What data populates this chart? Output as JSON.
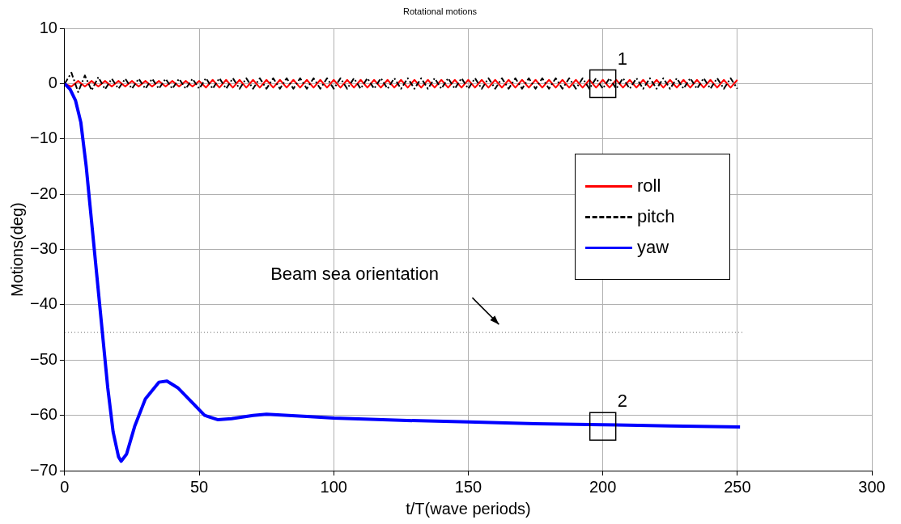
{
  "chart_data": {
    "type": "line",
    "title": "Rotational motions",
    "xlabel": "t/T(wave periods)",
    "ylabel": "Motions(deg)",
    "x": [
      0,
      2.5,
      5,
      7.5,
      10,
      12.5,
      15,
      17.5,
      20,
      22.5,
      25,
      27.5,
      30,
      32.5,
      35,
      37.5,
      40,
      42.5,
      45,
      47.5,
      50,
      52.5,
      55,
      57.5,
      60,
      62.5,
      65,
      67.5,
      70,
      72.5,
      75,
      77.5,
      80,
      82.5,
      85,
      87.5,
      90,
      92.5,
      95,
      97.5,
      100,
      102.5,
      105,
      107.5,
      110,
      112.5,
      115,
      117.5,
      120,
      122.5,
      125,
      127.5,
      130,
      132.5,
      135,
      137.5,
      140,
      142.5,
      145,
      147.5,
      150,
      152.5,
      155,
      157.5,
      160,
      162.5,
      165,
      167.5,
      170,
      172.5,
      175,
      177.5,
      180,
      182.5,
      185,
      187.5,
      190,
      192.5,
      195,
      197.5,
      200,
      202.5,
      205,
      207.5,
      210,
      212.5,
      215,
      217.5,
      220,
      222.5,
      225,
      227.5,
      230,
      232.5,
      235,
      237.5,
      240,
      242.5,
      245,
      247.5,
      250
    ],
    "series": [
      {
        "name": "roll",
        "color": "#ff0000",
        "line_style": "solid",
        "values": [
          0,
          -0.5,
          0.5,
          -0.5,
          0.5,
          -0.5,
          0.5,
          -0.5,
          0.5,
          -0.5,
          0.5,
          -0.5,
          0.5,
          -0.5,
          0.5,
          -0.5,
          0.5,
          -0.5,
          0.5,
          -0.5,
          0.5,
          -0.7,
          0.7,
          -0.7,
          0.7,
          -0.7,
          0.7,
          -0.7,
          0.7,
          -0.7,
          0.7,
          -0.7,
          0.7,
          -0.7,
          0.7,
          -0.7,
          0.7,
          -0.7,
          0.7,
          -0.7,
          0.7,
          -0.7,
          0.7,
          -0.7,
          0.7,
          -0.7,
          0.7,
          -0.7,
          0.7,
          -0.7,
          0.7,
          -0.7,
          0.7,
          -0.7,
          0.7,
          -0.7,
          0.7,
          -0.7,
          0.7,
          -0.7,
          0.7,
          -0.7,
          0.7,
          -0.7,
          0.7,
          -0.7,
          0.7,
          -0.7,
          0.7,
          -0.7,
          0.7,
          -0.7,
          0.7,
          -0.7,
          0.7,
          -0.7,
          0.7,
          -0.7,
          0.7,
          -0.7,
          0.7,
          -0.7,
          0.7,
          -0.7,
          0.7,
          -0.7,
          0.7,
          -0.7,
          0.7,
          -0.7,
          0.7,
          -0.7,
          0.7,
          -0.7,
          0.7,
          -0.7,
          0.7,
          -0.7,
          0.7,
          -0.7,
          0.7
        ]
      },
      {
        "name": "pitch",
        "color": "#000000",
        "line_style": "dashed",
        "values": [
          0,
          2,
          -1.5,
          1.5,
          -1.2,
          1.2,
          -1,
          0.9,
          -0.9,
          0.9,
          -0.9,
          0.9,
          -0.9,
          0.9,
          -0.9,
          0.9,
          -0.9,
          0.9,
          -0.9,
          0.9,
          -0.9,
          1,
          -0.9,
          1,
          -0.9,
          1,
          -0.9,
          1,
          -0.9,
          1,
          -0.9,
          1,
          -0.9,
          1,
          -0.9,
          1,
          -0.9,
          1,
          -0.9,
          1,
          -0.9,
          1,
          -0.9,
          1,
          -0.9,
          1,
          -0.9,
          1,
          -0.9,
          1,
          -0.9,
          1,
          -0.9,
          1,
          -0.9,
          1,
          -0.9,
          1,
          -0.9,
          1,
          -0.9,
          1,
          -0.9,
          1,
          -0.9,
          1,
          -0.9,
          1,
          -0.9,
          1,
          -0.9,
          1,
          -0.9,
          1,
          -0.9,
          1,
          -0.9,
          1,
          -0.9,
          1,
          -0.9,
          1,
          -0.9,
          1,
          -0.9,
          1,
          -0.9,
          1,
          -0.9,
          1,
          -0.9,
          1,
          -0.9,
          1,
          -0.9,
          1,
          -0.9,
          1,
          -0.9,
          1,
          -0.9
        ]
      },
      {
        "name": "yaw",
        "color": "#0000ff",
        "line_style": "solid",
        "x": [
          0,
          2,
          4,
          6,
          8,
          10,
          12,
          14,
          16,
          18,
          20,
          21,
          23,
          26,
          30,
          35,
          38,
          42,
          48,
          52,
          57,
          62,
          70,
          75,
          90,
          100,
          125,
          150,
          175,
          200,
          225,
          251
        ],
        "values": [
          0,
          -1,
          -3,
          -7,
          -15,
          -25,
          -35,
          -45,
          -55,
          -63,
          -67.5,
          -68.3,
          -67,
          -62,
          -57,
          -54,
          -53.8,
          -55,
          -58,
          -60,
          -60.8,
          -60.6,
          -60,
          -59.8,
          -60.2,
          -60.5,
          -60.9,
          -61.2,
          -61.5,
          -61.7,
          -61.9,
          -62.1
        ]
      }
    ],
    "xlim": [
      0,
      300
    ],
    "xticks": [
      0,
      50,
      100,
      150,
      200,
      250,
      300
    ],
    "ylim": [
      -70,
      10
    ],
    "yticks": [
      -70,
      -60,
      -50,
      -40,
      -30,
      -20,
      -10,
      0,
      10
    ],
    "ref_lines": [
      {
        "axis": "y",
        "value": -45,
        "label": "Beam sea orientation",
        "color": "#808080",
        "line_style": "dotted"
      }
    ],
    "annotations": [
      {
        "text": "1",
        "x": 200,
        "y": 0
      },
      {
        "text": "2",
        "x": 200,
        "y": -62
      }
    ],
    "grid": true,
    "legend": "right",
    "marker": "none"
  }
}
